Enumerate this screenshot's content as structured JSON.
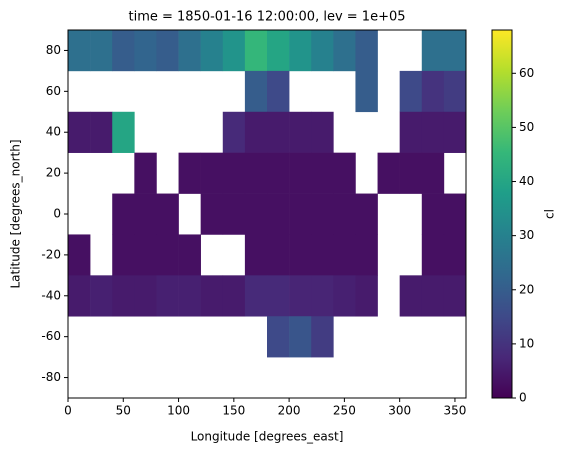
{
  "chart_data": {
    "type": "heatmap",
    "title": "time = 1850-01-16 12:00:00, lev = 1e+05",
    "x_label": "Longitude [degrees_east]",
    "y_label": "Latitude [degrees_north]",
    "colorbar_label": "cl",
    "colormap": "viridis",
    "x_edges": [
      0,
      20,
      40,
      60,
      80,
      100,
      120,
      140,
      160,
      180,
      200,
      220,
      240,
      260,
      280,
      300,
      320,
      340,
      360
    ],
    "y_edges": [
      90,
      70,
      50,
      30,
      10,
      -10,
      -30,
      -50,
      -70,
      -90
    ],
    "values": [
      [
        25,
        25,
        20,
        22,
        20,
        25,
        30,
        35,
        45,
        40,
        35,
        30,
        25,
        20,
        null,
        null,
        25,
        25
      ],
      [
        null,
        null,
        null,
        null,
        null,
        null,
        null,
        null,
        20,
        15,
        null,
        null,
        null,
        20,
        null,
        15,
        10,
        12
      ],
      [
        5,
        5,
        40,
        null,
        null,
        null,
        null,
        8,
        5,
        5,
        5,
        5,
        null,
        null,
        null,
        5,
        5,
        5
      ],
      [
        null,
        null,
        null,
        3,
        null,
        3,
        3,
        3,
        3,
        3,
        3,
        3,
        3,
        null,
        3,
        3,
        3,
        null
      ],
      [
        null,
        null,
        3,
        3,
        3,
        null,
        3,
        3,
        3,
        3,
        3,
        3,
        3,
        3,
        null,
        null,
        3,
        3
      ],
      [
        3,
        null,
        3,
        3,
        3,
        3,
        null,
        null,
        3,
        3,
        3,
        3,
        3,
        3,
        null,
        null,
        3,
        3
      ],
      [
        5,
        6,
        5,
        5,
        6,
        6,
        5,
        5,
        8,
        8,
        7,
        7,
        6,
        5,
        null,
        5,
        5,
        5
      ],
      [
        null,
        null,
        null,
        null,
        null,
        null,
        null,
        null,
        null,
        15,
        18,
        12,
        null,
        null,
        null,
        null,
        null,
        null
      ],
      [
        null,
        null,
        null,
        null,
        null,
        null,
        null,
        null,
        null,
        null,
        null,
        null,
        null,
        null,
        null,
        null,
        null,
        null
      ]
    ],
    "xlim": [
      0,
      360
    ],
    "ylim": [
      -90,
      90
    ],
    "clim": [
      0,
      68
    ],
    "xticks": [
      0,
      50,
      100,
      150,
      200,
      250,
      300,
      350
    ],
    "yticks": [
      -80,
      -60,
      -40,
      -20,
      0,
      20,
      40,
      60,
      80
    ],
    "cticks": [
      0,
      10,
      20,
      30,
      40,
      50,
      60
    ]
  }
}
